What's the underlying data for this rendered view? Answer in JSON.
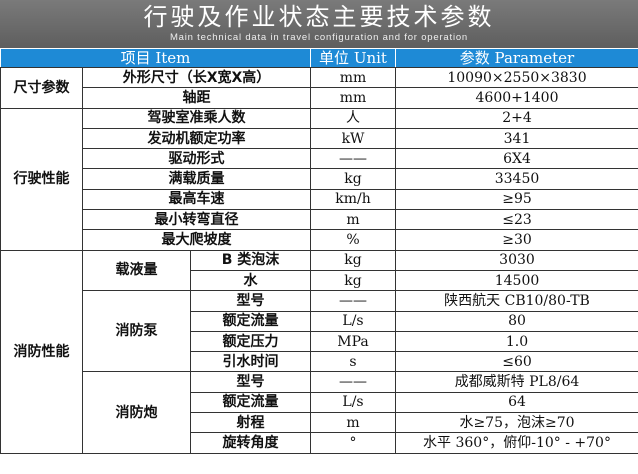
{
  "title": {
    "zh": "行驶及作业状态主要技术参数",
    "en": "Main technical data in travel configuration and for operation"
  },
  "header": {
    "item": "项目 Item",
    "unit": "单位 Unit",
    "param": "参数 Parameter"
  },
  "groups": {
    "size": "尺寸参数",
    "drive": "行驶性能",
    "fire": "消防性能",
    "liquid": "载液量",
    "pump": "消防泵",
    "monitor": "消防炮"
  },
  "rows": [
    {
      "item": "外形尺寸（长X宽X高）",
      "unit": "mm",
      "value": "10090×2550×3830"
    },
    {
      "item": "轴距",
      "unit": "mm",
      "value": "4600+1400"
    },
    {
      "item": "驾驶室准乘人数",
      "unit": "人",
      "value": "2+4"
    },
    {
      "item": "发动机额定功率",
      "unit": "kW",
      "value": "341"
    },
    {
      "item": "驱动形式",
      "unit": "——",
      "value": "6X4"
    },
    {
      "item": "满载质量",
      "unit": "kg",
      "value": "33450"
    },
    {
      "item": "最高车速",
      "unit": "km/h",
      "value": "≥95"
    },
    {
      "item": "最小转弯直径",
      "unit": "m",
      "value": "≤23"
    },
    {
      "item": "最大爬坡度",
      "unit": "%",
      "value": "≥30"
    },
    {
      "item": "B 类泡沫",
      "unit": "kg",
      "value": "3030"
    },
    {
      "item": "水",
      "unit": "kg",
      "value": "14500"
    },
    {
      "item": "型号",
      "unit": "——",
      "value": "陕西航天 CB10/80-TB"
    },
    {
      "item": "额定流量",
      "unit": "L/s",
      "value": "80"
    },
    {
      "item": "额定压力",
      "unit": "MPa",
      "value": "1.0"
    },
    {
      "item": "引水时间",
      "unit": "s",
      "value": "≤60"
    },
    {
      "item": "型号",
      "unit": "——",
      "value": "成都威斯特 PL8/64"
    },
    {
      "item": "额定流量",
      "unit": "L/s",
      "value": "64"
    },
    {
      "item": "射程",
      "unit": "m",
      "value": "水≥75，泡沫≥70"
    },
    {
      "item": "旋转角度",
      "unit": "°",
      "value": "水平 360°，俯仰-10° - +70°"
    }
  ]
}
